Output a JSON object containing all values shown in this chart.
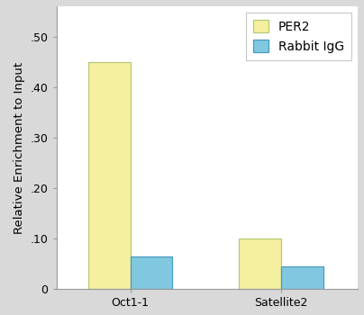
{
  "categories": [
    "Oct1-1",
    "Satellite2"
  ],
  "per2_values": [
    0.45,
    0.1
  ],
  "igg_values": [
    0.065,
    0.045
  ],
  "per2_color": "#F5F0A0",
  "per2_edge_color": "#B8C878",
  "igg_color": "#80C8E0",
  "igg_edge_color": "#4A9ABF",
  "bar_width": 0.28,
  "ylim": [
    0,
    0.56
  ],
  "yticks": [
    0.0,
    0.1,
    0.2,
    0.3,
    0.4,
    0.5
  ],
  "ytick_labels": [
    "0",
    ".10",
    ".20",
    ".30",
    ".40",
    ".50"
  ],
  "ylabel": "Relative Enrichment to Input",
  "legend_labels": [
    "PER2",
    "Rabbit IgG"
  ],
  "background_color": "#d9d9d9",
  "plot_bg_color": "#ffffff",
  "axis_fontsize": 9.5,
  "tick_fontsize": 9,
  "legend_fontsize": 10
}
